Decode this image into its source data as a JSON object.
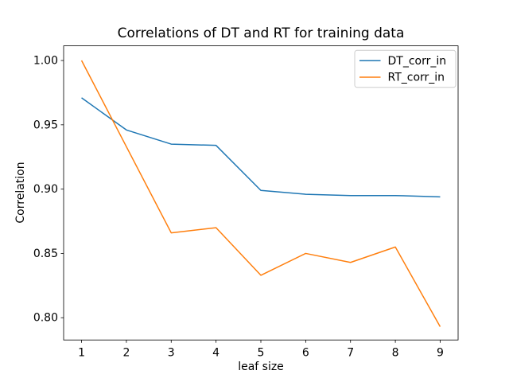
{
  "figure": {
    "kind": "matplotlib-line-chart"
  },
  "chart_data": {
    "type": "line",
    "title": "Correlations of DT and RT for training data",
    "xlabel": "leaf size",
    "ylabel": "Correlation",
    "x": [
      1,
      2,
      3,
      4,
      5,
      6,
      7,
      8,
      9
    ],
    "series": [
      {
        "name": "DT_corr_in",
        "color": "#1f77b4",
        "values": [
          0.971,
          0.946,
          0.935,
          0.934,
          0.899,
          0.896,
          0.895,
          0.895,
          0.894
        ]
      },
      {
        "name": "RT_corr_in",
        "color": "#ff7f0e",
        "values": [
          1.0,
          0.933,
          0.866,
          0.87,
          0.833,
          0.85,
          0.843,
          0.855,
          0.793
        ]
      }
    ],
    "xlim": [
      0.6,
      9.4
    ],
    "ylim": [
      0.7827,
      1.0114
    ],
    "xticks": [
      1,
      2,
      3,
      4,
      5,
      6,
      7,
      8,
      9
    ],
    "xtick_labels": [
      "1",
      "2",
      "3",
      "4",
      "5",
      "6",
      "7",
      "8",
      "9"
    ],
    "yticks": [
      0.8,
      0.85,
      0.9,
      0.95,
      1.0
    ],
    "ytick_labels": [
      "0.80",
      "0.85",
      "0.90",
      "0.95",
      "1.00"
    ],
    "grid": false,
    "legend_position": "upper-right",
    "legend_entries": [
      "DT_corr_in",
      "RT_corr_in"
    ]
  },
  "colors": {
    "background": "#ffffff",
    "axes_line": "#000000",
    "text": "#000000",
    "legend_border": "#cccccc"
  }
}
